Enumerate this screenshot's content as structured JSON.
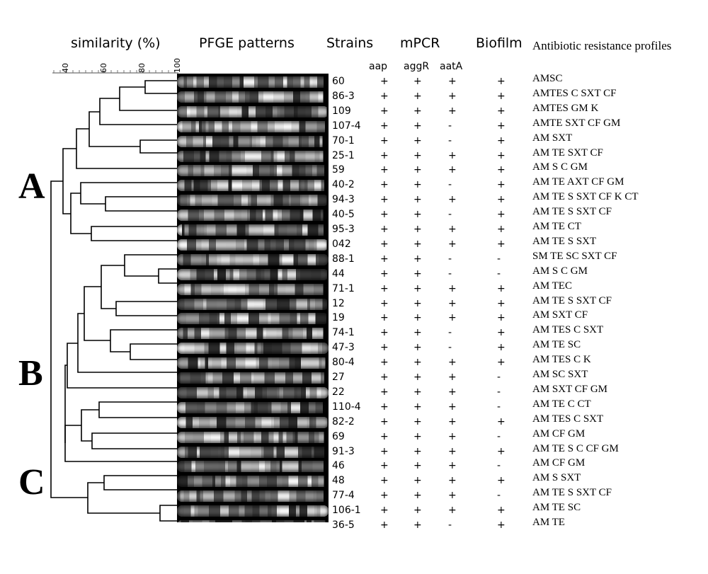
{
  "headers": {
    "similarity": "similarity (%)",
    "pfge": "PFGE patterns",
    "strains": "Strains",
    "mpcr": "mPCR",
    "biofilm": "Biofilm",
    "profiles": "Antibiotic resistance profiles",
    "aap": "aap",
    "aggR": "aggR",
    "aatA": "aatA"
  },
  "scale_ticks": [
    "40",
    "60",
    "80",
    "100"
  ],
  "clusters": [
    "A",
    "B",
    "C"
  ],
  "rows": [
    {
      "strain": "60",
      "aap": "+",
      "aggR": "+",
      "aatA": "+",
      "biofilm": "+",
      "profile": "AMSC"
    },
    {
      "strain": "86-3",
      "aap": "+",
      "aggR": "+",
      "aatA": "+",
      "biofilm": "+",
      "profile": "AMTES C SXT CF"
    },
    {
      "strain": "109",
      "aap": "+",
      "aggR": "+",
      "aatA": "+",
      "biofilm": "+",
      "profile": "AMTES GM K"
    },
    {
      "strain": "107-4",
      "aap": "+",
      "aggR": "+",
      "aatA": "-",
      "biofilm": "+",
      "profile": "AMTE SXT CF GM"
    },
    {
      "strain": "70-1",
      "aap": "+",
      "aggR": "+",
      "aatA": "-",
      "biofilm": "+",
      "profile": "AM SXT"
    },
    {
      "strain": "25-1",
      "aap": "+",
      "aggR": "+",
      "aatA": "+",
      "biofilm": "+",
      "profile": "AM TE SXT CF"
    },
    {
      "strain": "59",
      "aap": "+",
      "aggR": "+",
      "aatA": "+",
      "biofilm": "+",
      "profile": "AM S C GM"
    },
    {
      "strain": "40-2",
      "aap": "+",
      "aggR": "+",
      "aatA": "-",
      "biofilm": "+",
      "profile": "AM TE AXT CF GM"
    },
    {
      "strain": "94-3",
      "aap": "+",
      "aggR": "+",
      "aatA": "+",
      "biofilm": "+",
      "profile": "AM TE S SXT CF K CT"
    },
    {
      "strain": "40-5",
      "aap": "+",
      "aggR": "+",
      "aatA": "-",
      "biofilm": "+",
      "profile": "AM TE S SXT CF"
    },
    {
      "strain": "95-3",
      "aap": "+",
      "aggR": "+",
      "aatA": "+",
      "biofilm": "+",
      "profile": "AM TE CT"
    },
    {
      "strain": "042",
      "aap": "+",
      "aggR": "+",
      "aatA": "+",
      "biofilm": "+",
      "profile": "AM TE S SXT"
    },
    {
      "strain": "88-1",
      "aap": "+",
      "aggR": "+",
      "aatA": "-",
      "biofilm": "-",
      "profile": "SM TE SC SXT CF"
    },
    {
      "strain": "44",
      "aap": "+",
      "aggR": "+",
      "aatA": "-",
      "biofilm": "-",
      "profile": "AM S C GM"
    },
    {
      "strain": "71-1",
      "aap": "+",
      "aggR": "+",
      "aatA": "+",
      "biofilm": "+",
      "profile": "AM TEC"
    },
    {
      "strain": "12",
      "aap": "+",
      "aggR": "+",
      "aatA": "+",
      "biofilm": "+",
      "profile": "AM TE S SXT CF"
    },
    {
      "strain": "19",
      "aap": "+",
      "aggR": "+",
      "aatA": "+",
      "biofilm": "+",
      "profile": "AM SXT CF"
    },
    {
      "strain": "74-1",
      "aap": "+",
      "aggR": "+",
      "aatA": "-",
      "biofilm": "+",
      "profile": "AM TES C SXT"
    },
    {
      "strain": "47-3",
      "aap": "+",
      "aggR": "+",
      "aatA": "-",
      "biofilm": "+",
      "profile": "AM TE SC"
    },
    {
      "strain": "80-4",
      "aap": "+",
      "aggR": "+",
      "aatA": "+",
      "biofilm": "+",
      "profile": "AM TES C K"
    },
    {
      "strain": "27",
      "aap": "+",
      "aggR": "+",
      "aatA": "+",
      "biofilm": "-",
      "profile": "AM SC SXT"
    },
    {
      "strain": "22",
      "aap": "+",
      "aggR": "+",
      "aatA": "+",
      "biofilm": "-",
      "profile": "AM SXT CF GM"
    },
    {
      "strain": "110-4",
      "aap": "+",
      "aggR": "+",
      "aatA": "+",
      "biofilm": "-",
      "profile": "AM TE C CT"
    },
    {
      "strain": "82-2",
      "aap": "+",
      "aggR": "+",
      "aatA": "+",
      "biofilm": "+",
      "profile": "AM TES C SXT"
    },
    {
      "strain": "69",
      "aap": "+",
      "aggR": "+",
      "aatA": "+",
      "biofilm": "-",
      "profile": "AM CF GM"
    },
    {
      "strain": "91-3",
      "aap": "+",
      "aggR": "+",
      "aatA": "+",
      "biofilm": "+",
      "profile": "AM TE S C CF GM"
    },
    {
      "strain": "46",
      "aap": "+",
      "aggR": "+",
      "aatA": "+",
      "biofilm": "-",
      "profile": "AM CF GM"
    },
    {
      "strain": "48",
      "aap": "+",
      "aggR": "+",
      "aatA": "+",
      "biofilm": "+",
      "profile": "AM S SXT"
    },
    {
      "strain": "77-4",
      "aap": "+",
      "aggR": "+",
      "aatA": "+",
      "biofilm": "-",
      "profile": "AM TE S SXT CF"
    },
    {
      "strain": "106-1",
      "aap": "+",
      "aggR": "+",
      "aatA": "+",
      "biofilm": "+",
      "profile": "AM TE SC"
    },
    {
      "strain": "36-5",
      "aap": "+",
      "aggR": "+",
      "aatA": "-",
      "biofilm": "+",
      "profile": "AM TE"
    }
  ]
}
